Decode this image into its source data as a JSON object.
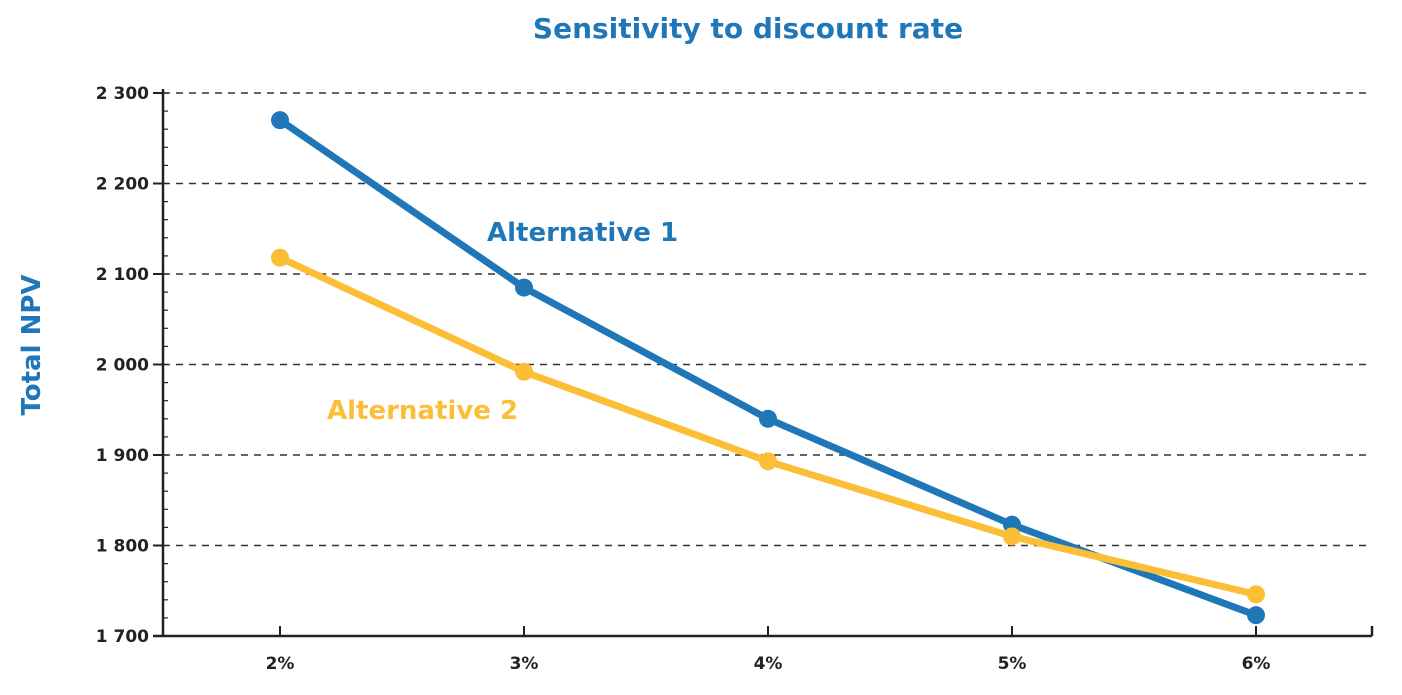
{
  "chart_data": {
    "type": "line",
    "title": "Sensitivity to discount rate",
    "xlabel": "",
    "ylabel": "Total NPV",
    "categories": [
      "2%",
      "3%",
      "4%",
      "5%",
      "6%"
    ],
    "yticks": [
      "1 700",
      "1 800",
      "1 900",
      "2 000",
      "2 100",
      "2 200",
      "2 300"
    ],
    "ytick_values": [
      1700,
      1800,
      1900,
      2000,
      2100,
      2200,
      2300
    ],
    "ylim": [
      1700,
      2300
    ],
    "grid": true,
    "legend": "inline-labels",
    "series": [
      {
        "name": "Alternative 1",
        "color": "#1F77B8",
        "values": [
          2270,
          2085,
          1940,
          1823,
          1723
        ]
      },
      {
        "name": "Alternative 2",
        "color": "#FBBE36",
        "values": [
          2118,
          1992,
          1893,
          1810,
          1746
        ]
      }
    ],
    "title_color": "#1F77B8",
    "ylabel_color": "#1F77B8"
  }
}
